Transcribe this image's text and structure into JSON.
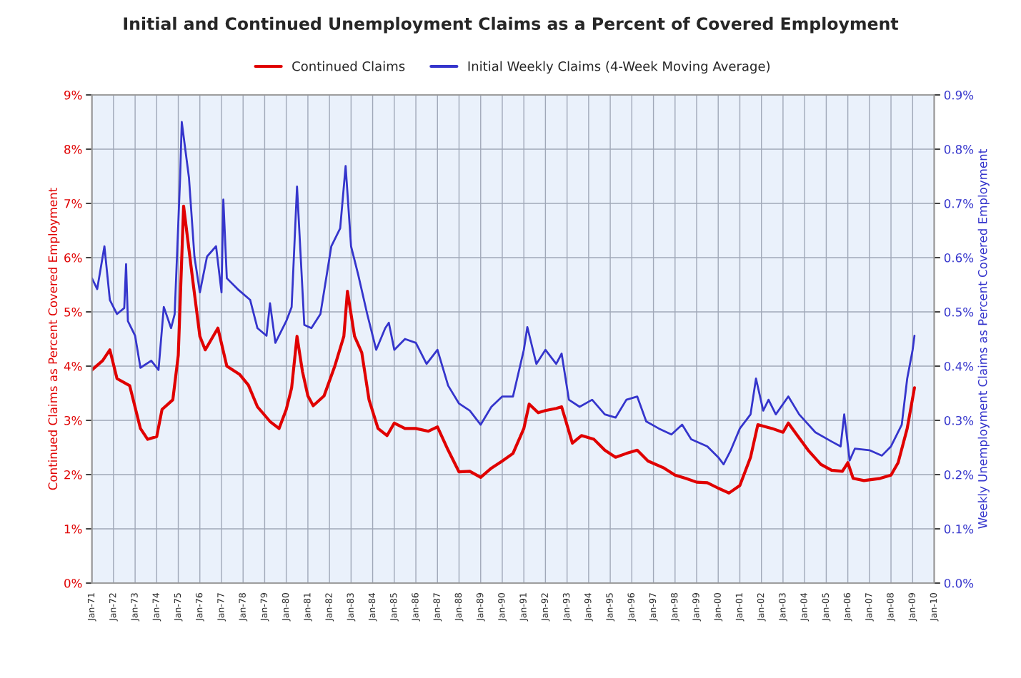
{
  "chart_data": {
    "type": "line",
    "title": "Initial and Continued Unemployment Claims as a Percent of Covered Employment",
    "ylabel": "Continued Claims as Percent Covered Employment",
    "y2label": "Weekly Unemployment Claims as Percent Covered Employment",
    "xlim": [
      "1971-01",
      "2010-01"
    ],
    "xticks": [
      {
        "value": "1971-01",
        "label": "Jan-71"
      },
      {
        "value": "1972-01",
        "label": "Jan-72"
      },
      {
        "value": "1973-01",
        "label": "Jan-73"
      },
      {
        "value": "1974-01",
        "label": "Jan-74"
      },
      {
        "value": "1975-01",
        "label": "Jan-75"
      },
      {
        "value": "1976-01",
        "label": "Jan-76"
      },
      {
        "value": "1977-01",
        "label": "Jan-77"
      },
      {
        "value": "1978-01",
        "label": "Jan-78"
      },
      {
        "value": "1979-01",
        "label": "Jan-79"
      },
      {
        "value": "1980-01",
        "label": "Jan-80"
      },
      {
        "value": "1981-01",
        "label": "Jan-81"
      },
      {
        "value": "1982-01",
        "label": "Jan-82"
      },
      {
        "value": "1983-01",
        "label": "Jan-83"
      },
      {
        "value": "1984-01",
        "label": "Jan-84"
      },
      {
        "value": "1985-01",
        "label": "Jan-85"
      },
      {
        "value": "1986-01",
        "label": "Jan-86"
      },
      {
        "value": "1987-01",
        "label": "Jan-87"
      },
      {
        "value": "1988-01",
        "label": "Jan-88"
      },
      {
        "value": "1989-01",
        "label": "Jan-89"
      },
      {
        "value": "1990-01",
        "label": "Jan-90"
      },
      {
        "value": "1991-01",
        "label": "Jan-91"
      },
      {
        "value": "1992-01",
        "label": "Jan-92"
      },
      {
        "value": "1993-01",
        "label": "Jan-93"
      },
      {
        "value": "1994-01",
        "label": "Jan-94"
      },
      {
        "value": "1995-01",
        "label": "Jan-95"
      },
      {
        "value": "1996-01",
        "label": "Jan-96"
      },
      {
        "value": "1997-01",
        "label": "Jan-97"
      },
      {
        "value": "1998-01",
        "label": "Jan-98"
      },
      {
        "value": "1999-01",
        "label": "Jan-99"
      },
      {
        "value": "2000-01",
        "label": "Jan-00"
      },
      {
        "value": "2001-01",
        "label": "Jan-01"
      },
      {
        "value": "2002-01",
        "label": "Jan-02"
      },
      {
        "value": "2003-01",
        "label": "Jan-03"
      },
      {
        "value": "2004-01",
        "label": "Jan-04"
      },
      {
        "value": "2005-01",
        "label": "Jan-05"
      },
      {
        "value": "2006-01",
        "label": "Jan-06"
      },
      {
        "value": "2007-01",
        "label": "Jan-07"
      },
      {
        "value": "2008-01",
        "label": "Jan-08"
      },
      {
        "value": "2009-01",
        "label": "Jan-09"
      },
      {
        "value": "2010-01",
        "label": "Jan-10"
      }
    ],
    "ylim": [
      0,
      9
    ],
    "yticks": [
      {
        "value": 0,
        "label": "0%"
      },
      {
        "value": 1,
        "label": "1%"
      },
      {
        "value": 2,
        "label": "2%"
      },
      {
        "value": 3,
        "label": "3%"
      },
      {
        "value": 4,
        "label": "4%"
      },
      {
        "value": 5,
        "label": "5%"
      },
      {
        "value": 6,
        "label": "6%"
      },
      {
        "value": 7,
        "label": "7%"
      },
      {
        "value": 8,
        "label": "8%"
      },
      {
        "value": 9,
        "label": "9%"
      }
    ],
    "y2lim": [
      0,
      0.9
    ],
    "y2ticks": [
      {
        "value": 0,
        "label": "0.0%"
      },
      {
        "value": 0.1,
        "label": "0.1%"
      },
      {
        "value": 0.2,
        "label": "0.2%"
      },
      {
        "value": 0.3,
        "label": "0.3%"
      },
      {
        "value": 0.4,
        "label": "0.4%"
      },
      {
        "value": 0.5,
        "label": "0.5%"
      },
      {
        "value": 0.6,
        "label": "0.6%"
      },
      {
        "value": 0.7,
        "label": "0.7%"
      },
      {
        "value": 0.8,
        "label": "0.8%"
      },
      {
        "value": 0.9,
        "label": "0.9%"
      }
    ],
    "grid": true,
    "legend": "top",
    "series": [
      {
        "name": "Continued Claims",
        "color": "#e00000",
        "axis": "y",
        "x": [
          "1971-01",
          "1971-07",
          "1971-11",
          "1972-03",
          "1972-10",
          "1973-04",
          "1973-08",
          "1974-01",
          "1974-04",
          "1974-10",
          "1975-01",
          "1975-04",
          "1975-09",
          "1976-01",
          "1976-04",
          "1976-11",
          "1977-04",
          "1977-11",
          "1978-04",
          "1978-09",
          "1979-04",
          "1979-09",
          "1980-01",
          "1980-04",
          "1980-07",
          "1980-10",
          "1981-01",
          "1981-04",
          "1981-10",
          "1982-04",
          "1982-09",
          "1982-11",
          "1983-03",
          "1983-07",
          "1983-11",
          "1984-04",
          "1984-09",
          "1985-01",
          "1985-07",
          "1986-01",
          "1986-08",
          "1987-01",
          "1987-07",
          "1988-01",
          "1988-07",
          "1989-01",
          "1989-07",
          "1990-01",
          "1990-07",
          "1991-01",
          "1991-04",
          "1991-09",
          "1992-01",
          "1992-07",
          "1992-10",
          "1993-04",
          "1993-09",
          "1994-04",
          "1994-10",
          "1995-04",
          "1995-10",
          "1996-04",
          "1996-10",
          "1997-07",
          "1998-01",
          "1998-07",
          "1999-01",
          "1999-07",
          "2000-01",
          "2000-07",
          "2001-01",
          "2001-07",
          "2001-11",
          "2002-07",
          "2003-01",
          "2003-04",
          "2003-09",
          "2004-03",
          "2004-10",
          "2005-04",
          "2005-10",
          "2006-01",
          "2006-04",
          "2006-10",
          "2007-07",
          "2008-01",
          "2008-05",
          "2008-10",
          "2009-02"
        ],
        "values": [
          3.93,
          4.1,
          4.3,
          3.77,
          3.64,
          2.85,
          2.65,
          2.7,
          3.2,
          3.38,
          4.2,
          6.95,
          5.6,
          4.55,
          4.3,
          4.7,
          4.0,
          3.85,
          3.65,
          3.25,
          2.98,
          2.85,
          3.2,
          3.6,
          4.55,
          3.9,
          3.45,
          3.27,
          3.45,
          4.0,
          4.55,
          5.38,
          4.55,
          4.25,
          3.38,
          2.85,
          2.72,
          2.95,
          2.85,
          2.85,
          2.8,
          2.88,
          2.45,
          2.05,
          2.06,
          1.95,
          2.12,
          2.25,
          2.39,
          2.85,
          3.3,
          3.14,
          3.18,
          3.22,
          3.25,
          2.58,
          2.72,
          2.65,
          2.45,
          2.32,
          2.39,
          2.45,
          2.25,
          2.12,
          1.99,
          1.93,
          1.86,
          1.85,
          1.75,
          1.66,
          1.8,
          2.32,
          2.92,
          2.85,
          2.78,
          2.95,
          2.72,
          2.45,
          2.19,
          2.08,
          2.06,
          2.22,
          1.93,
          1.89,
          1.93,
          1.99,
          2.22,
          2.85,
          3.6
        ]
      },
      {
        "name": "Initial Weekly Claims (4-Week Moving Average)",
        "color": "#3535cc",
        "axis": "y2",
        "x": [
          "1971-01",
          "1971-04",
          "1971-08",
          "1971-11",
          "1972-03",
          "1972-07",
          "1972-08",
          "1972-09",
          "1973-01",
          "1973-04",
          "1973-10",
          "1974-02",
          "1974-05",
          "1974-09",
          "1974-11",
          "1975-02",
          "1975-03",
          "1975-07",
          "1975-10",
          "1976-01",
          "1976-05",
          "1976-10",
          "1977-01",
          "1977-02",
          "1977-04",
          "1977-10",
          "1978-05",
          "1978-09",
          "1979-02",
          "1979-04",
          "1979-07",
          "1980-01",
          "1980-04",
          "1980-07",
          "1980-11",
          "1981-03",
          "1981-08",
          "1982-02",
          "1982-07",
          "1982-10",
          "1983-01",
          "1983-05",
          "1983-10",
          "1984-03",
          "1984-08",
          "1984-10",
          "1985-01",
          "1985-07",
          "1986-01",
          "1986-07",
          "1987-01",
          "1987-07",
          "1988-01",
          "1988-07",
          "1989-01",
          "1989-07",
          "1990-01",
          "1990-07",
          "1991-01",
          "1991-03",
          "1991-08",
          "1992-01",
          "1992-07",
          "1992-10",
          "1993-02",
          "1993-08",
          "1994-03",
          "1994-10",
          "1995-04",
          "1995-10",
          "1996-04",
          "1996-09",
          "1997-04",
          "1997-11",
          "1998-05",
          "1998-10",
          "1999-07",
          "2000-01",
          "2000-04",
          "2000-08",
          "2001-01",
          "2001-07",
          "2001-10",
          "2002-02",
          "2002-05",
          "2002-09",
          "2003-04",
          "2003-10",
          "2004-07",
          "2005-04",
          "2005-09",
          "2005-11",
          "2006-02",
          "2006-05",
          "2007-01",
          "2007-08",
          "2008-01",
          "2008-07",
          "2008-10",
          "2009-01",
          "2009-02"
        ],
        "values": [
          0.562,
          0.542,
          0.621,
          0.522,
          0.496,
          0.507,
          0.588,
          0.483,
          0.456,
          0.397,
          0.41,
          0.393,
          0.509,
          0.47,
          0.496,
          0.747,
          0.85,
          0.747,
          0.602,
          0.536,
          0.602,
          0.621,
          0.536,
          0.707,
          0.562,
          0.542,
          0.522,
          0.47,
          0.456,
          0.516,
          0.443,
          0.483,
          0.509,
          0.731,
          0.476,
          0.47,
          0.496,
          0.621,
          0.654,
          0.769,
          0.621,
          0.569,
          0.496,
          0.43,
          0.47,
          0.48,
          0.43,
          0.45,
          0.443,
          0.404,
          0.43,
          0.364,
          0.331,
          0.318,
          0.292,
          0.325,
          0.344,
          0.344,
          0.43,
          0.472,
          0.404,
          0.43,
          0.404,
          0.423,
          0.338,
          0.325,
          0.338,
          0.311,
          0.305,
          0.338,
          0.344,
          0.298,
          0.285,
          0.274,
          0.292,
          0.265,
          0.252,
          0.232,
          0.219,
          0.245,
          0.285,
          0.311,
          0.377,
          0.318,
          0.338,
          0.311,
          0.344,
          0.311,
          0.278,
          0.261,
          0.252,
          0.311,
          0.226,
          0.248,
          0.245,
          0.235,
          0.252,
          0.292,
          0.377,
          0.43,
          0.456
        ]
      }
    ]
  }
}
